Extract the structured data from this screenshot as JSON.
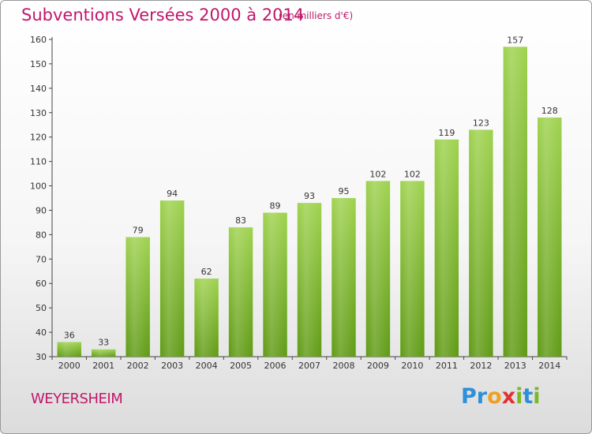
{
  "header": {
    "title": "Subventions Versées 2000 à 2014",
    "subtitle": "(en milliers d'€)"
  },
  "footer": {
    "place": "WEYERSHEIM",
    "brand_letters": [
      {
        "ch": "P",
        "color": "#2f8fd8"
      },
      {
        "ch": "r",
        "color": "#2f8fd8"
      },
      {
        "ch": "o",
        "color": "#f0a020"
      },
      {
        "ch": "x",
        "color": "#e23030"
      },
      {
        "ch": "i",
        "color": "#7ab828"
      },
      {
        "ch": "t",
        "color": "#2f8fd8"
      },
      {
        "ch": "i",
        "color": "#7ab828"
      }
    ]
  },
  "chart_data": {
    "type": "bar",
    "title": "Subventions Versées 2000 à 2014",
    "subtitle": "(en milliers d'€)",
    "categories": [
      "2000",
      "2001",
      "2002",
      "2003",
      "2004",
      "2005",
      "2006",
      "2007",
      "2008",
      "2009",
      "2010",
      "2011",
      "2012",
      "2013",
      "2014"
    ],
    "values": [
      36,
      33,
      79,
      94,
      62,
      83,
      89,
      93,
      95,
      102,
      102,
      119,
      123,
      157,
      128
    ],
    "ylim": [
      30,
      160
    ],
    "yticks": [
      30,
      40,
      50,
      60,
      70,
      80,
      90,
      100,
      110,
      120,
      130,
      140,
      150,
      160
    ],
    "grid": false,
    "colors": {
      "bar_top": "#9ed24e",
      "bar_bottom": "#5f9a14",
      "text": "#c0186a"
    }
  }
}
